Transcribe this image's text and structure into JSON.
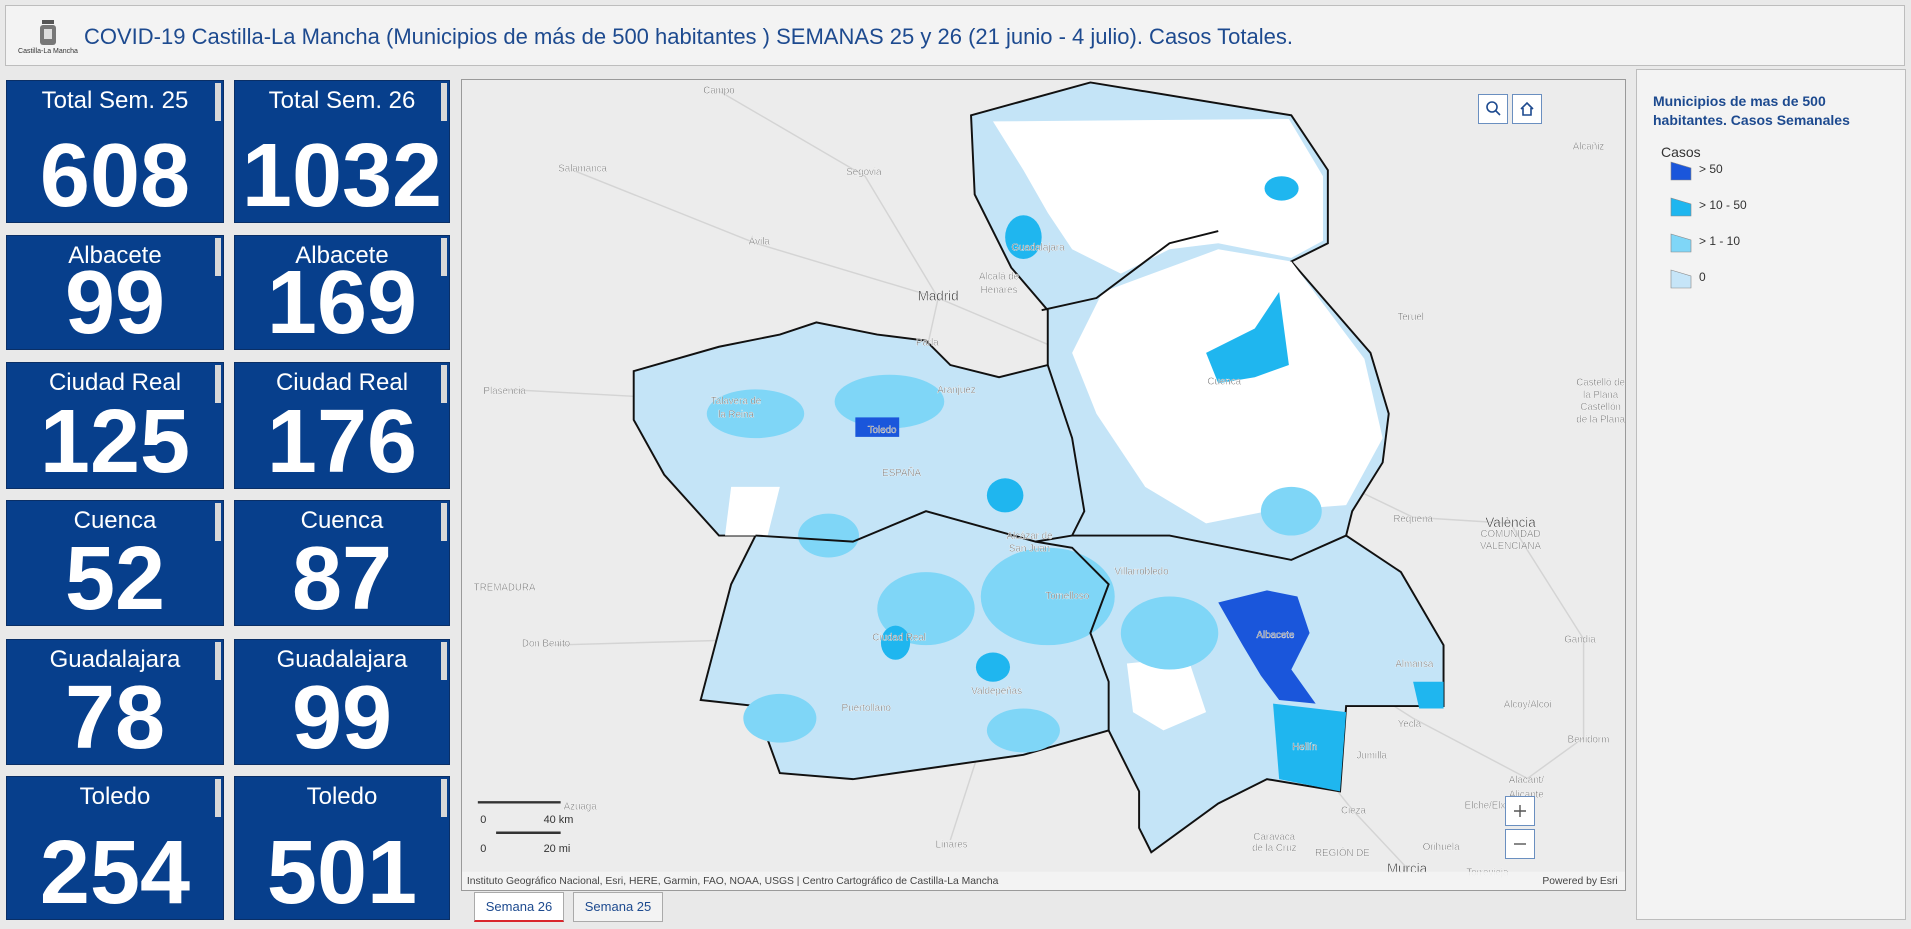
{
  "header": {
    "title": "COVID-19 Castilla-La Mancha (Municipios de más de 500 habitantes ) SEMANAS 25 y 26 (21 junio - 4 julio). Casos Totales.",
    "logo_text": "Castilla-La Mancha"
  },
  "cards": [
    {
      "label": "Total Sem. 25",
      "value": "608"
    },
    {
      "label": "Total Sem. 26",
      "value": "1032"
    },
    {
      "label": "Albacete",
      "value": "99"
    },
    {
      "label": "Albacete",
      "value": "169"
    },
    {
      "label": "Ciudad Real",
      "value": "125"
    },
    {
      "label": "Ciudad Real",
      "value": "176"
    },
    {
      "label": "Cuenca",
      "value": "52"
    },
    {
      "label": "Cuenca",
      "value": "87"
    },
    {
      "label": "Guadalajara",
      "value": "78"
    },
    {
      "label": "Guadalajara",
      "value": "99"
    },
    {
      "label": "Toledo",
      "value": "254"
    },
    {
      "label": "Toledo",
      "value": "501"
    }
  ],
  "map": {
    "places": [
      "Campo",
      "Salamanca",
      "Segovia",
      "Ávila",
      "Madrid",
      "Alcalá de",
      "Henares",
      "Guadalajara",
      "Parla",
      "Aranjuez",
      "Plasencia",
      "Talavera de",
      "la Reina",
      "Toledo",
      "ESPAÑA",
      "Cuenca",
      "Teruel",
      "Alcañiz",
      "Castelló de",
      "la Plana",
      "Castellón",
      "de la Plana",
      "València",
      "Requena",
      "COMUNIDAD",
      "VALENCIANA",
      "Alcázar de",
      "San Juan",
      "Villarrobledo",
      "Tomelloso",
      "Albacete",
      "Ciudad Real",
      "Valdepeñas",
      "Puertollano",
      "Almansa",
      "Hellín",
      "Gandia",
      "Alcoy/Alcoi",
      "Yecla",
      "Jumilla",
      "Benidorm",
      "Alacant/",
      "Alicante",
      "Elche/Elx",
      "Cieza",
      "Caravaca",
      "de la Cruz",
      "Orihuela",
      "Torrevieja",
      "Murcia",
      "Linares",
      "Don Benito",
      "Azuaga",
      "TREMADURA",
      "REGIÓN DE"
    ],
    "scale": [
      "0",
      "40 km",
      "0",
      "20 mi"
    ],
    "attribution": "Instituto Geográfico Nacional, Esri, HERE, Garmin, FAO, NOAA, USGS | Centro Cartográfico de Castilla-La Mancha",
    "powered": "Powered by Esri"
  },
  "legend": {
    "title": "Municipios de mas de 500 habitantes. Casos Semanales",
    "subtitle": "Casos",
    "items": [
      {
        "label": "> 50",
        "color": "#1a56db"
      },
      {
        "label": "> 10 - 50",
        "color": "#1fb6ef"
      },
      {
        "label": "> 1 - 10",
        "color": "#7fd6f7"
      },
      {
        "label": "0",
        "color": "#c6e5f8"
      }
    ]
  },
  "tabs": [
    "Semana 26",
    "Semana 25"
  ]
}
